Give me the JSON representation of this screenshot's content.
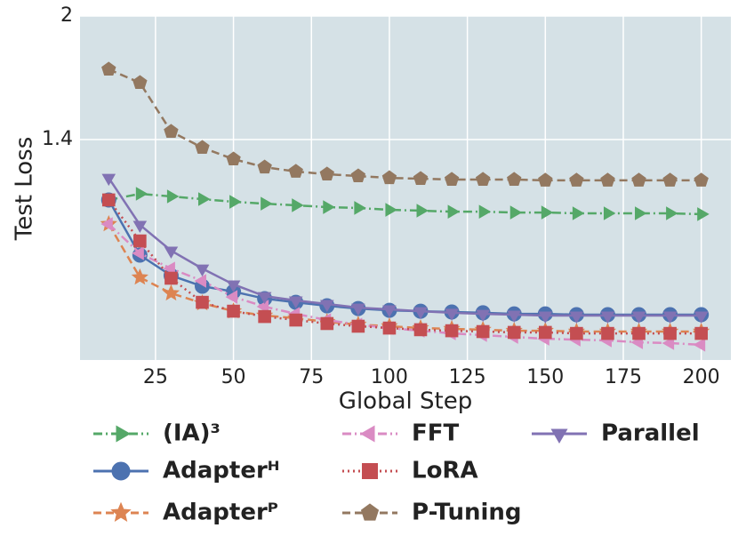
{
  "chart_data": {
    "type": "line",
    "xlabel": "Global Step",
    "ylabel": "Test Loss",
    "x": [
      10,
      20,
      30,
      40,
      50,
      60,
      70,
      80,
      90,
      100,
      110,
      120,
      130,
      140,
      150,
      160,
      170,
      180,
      190,
      200
    ],
    "xlim": [
      0.8,
      209.5
    ],
    "xticks": [
      25,
      50,
      75,
      100,
      125,
      150,
      175,
      200
    ],
    "ylim": [
      0.33,
      2
    ],
    "yticks": [
      1.4,
      2
    ],
    "grid": true,
    "legend": "below",
    "series": [
      {
        "name": "(IA)³",
        "color": "#55a868",
        "marker": "triangle-right",
        "linestyle": "dashdot",
        "values": [
          1.107,
          1.137,
          1.124,
          1.111,
          1.098,
          1.089,
          1.081,
          1.072,
          1.068,
          1.059,
          1.055,
          1.05,
          1.05,
          1.046,
          1.046,
          1.042,
          1.042,
          1.042,
          1.042,
          1.038
        ]
      },
      {
        "name": "Adapterᴴ",
        "color": "#4c72b0",
        "marker": "circle",
        "linestyle": "solid",
        "values": [
          1.107,
          0.839,
          0.74,
          0.688,
          0.662,
          0.628,
          0.61,
          0.593,
          0.58,
          0.571,
          0.567,
          0.563,
          0.559,
          0.554,
          0.554,
          0.55,
          0.55,
          0.55,
          0.55,
          0.55
        ]
      },
      {
        "name": "Adapterᴾ",
        "color": "#dd8452",
        "marker": "star",
        "linestyle": "dashed",
        "values": [
          0.99,
          0.731,
          0.654,
          0.606,
          0.567,
          0.546,
          0.533,
          0.515,
          0.502,
          0.494,
          0.485,
          0.481,
          0.477,
          0.472,
          0.472,
          0.468,
          0.468,
          0.468,
          0.468,
          0.468
        ]
      },
      {
        "name": "FFT",
        "color": "#da8bc3",
        "marker": "triangle-left",
        "linestyle": "dashdot",
        "values": [
          0.99,
          0.848,
          0.774,
          0.714,
          0.636,
          0.589,
          0.554,
          0.524,
          0.502,
          0.485,
          0.472,
          0.459,
          0.451,
          0.442,
          0.433,
          0.429,
          0.425,
          0.416,
          0.412,
          0.404
        ]
      },
      {
        "name": "LoRA",
        "color": "#c44e52",
        "marker": "square",
        "linestyle": "dotted",
        "values": [
          1.107,
          0.908,
          0.727,
          0.61,
          0.567,
          0.541,
          0.524,
          0.507,
          0.494,
          0.485,
          0.477,
          0.472,
          0.468,
          0.464,
          0.464,
          0.459,
          0.459,
          0.459,
          0.459,
          0.459
        ]
      },
      {
        "name": "P-Tuning",
        "color": "#937860",
        "marker": "pentagon",
        "linestyle": "dashed",
        "values": [
          1.741,
          1.676,
          1.439,
          1.361,
          1.305,
          1.266,
          1.245,
          1.232,
          1.223,
          1.214,
          1.21,
          1.206,
          1.206,
          1.206,
          1.202,
          1.202,
          1.202,
          1.202,
          1.202,
          1.202
        ]
      },
      {
        "name": "Parallel",
        "color": "#8172b3",
        "marker": "triangle-down",
        "linestyle": "solid",
        "values": [
          1.214,
          0.986,
          0.861,
          0.774,
          0.697,
          0.64,
          0.619,
          0.602,
          0.584,
          0.576,
          0.567,
          0.559,
          0.554,
          0.55,
          0.546,
          0.546,
          0.546,
          0.546,
          0.546,
          0.546
        ]
      }
    ]
  }
}
